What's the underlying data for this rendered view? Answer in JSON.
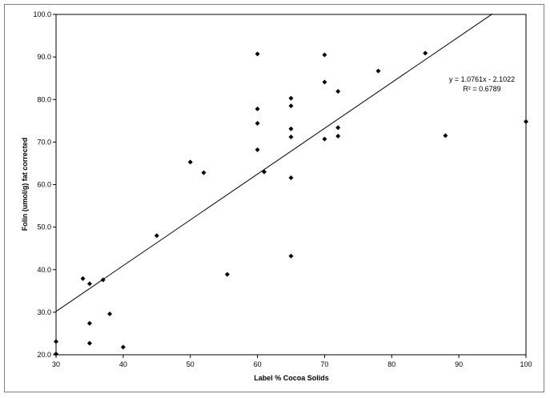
{
  "chart_data": {
    "type": "scatter",
    "title": "",
    "xlabel": "Label %  Cocoa Solids",
    "ylabel": "Folin (umol/g) fat corrected",
    "xlim": [
      30,
      100
    ],
    "ylim": [
      20,
      100
    ],
    "x_ticks": [
      "30",
      "40",
      "50",
      "60",
      "70",
      "80",
      "90",
      "100"
    ],
    "y_ticks": [
      "20.0",
      "30.0",
      "40.0",
      "50.0",
      "60.0",
      "70.0",
      "80.0",
      "90.0",
      "100.0"
    ],
    "grid": false,
    "legend": "none",
    "marker": "diamond",
    "marker_color": "#000000",
    "points": [
      {
        "x": 30,
        "y": 23.1
      },
      {
        "x": 30,
        "y": 20.2
      },
      {
        "x": 34,
        "y": 37.9
      },
      {
        "x": 35,
        "y": 36.7
      },
      {
        "x": 35,
        "y": 27.4
      },
      {
        "x": 35,
        "y": 22.7
      },
      {
        "x": 37,
        "y": 37.6
      },
      {
        "x": 38,
        "y": 29.6
      },
      {
        "x": 40,
        "y": 21.8
      },
      {
        "x": 45,
        "y": 48.0
      },
      {
        "x": 50,
        "y": 65.3
      },
      {
        "x": 52,
        "y": 62.8
      },
      {
        "x": 55.5,
        "y": 38.9
      },
      {
        "x": 60,
        "y": 90.7
      },
      {
        "x": 60,
        "y": 77.8
      },
      {
        "x": 60,
        "y": 74.4
      },
      {
        "x": 60,
        "y": 68.2
      },
      {
        "x": 61,
        "y": 63.0
      },
      {
        "x": 65,
        "y": 80.3
      },
      {
        "x": 65,
        "y": 78.5
      },
      {
        "x": 65,
        "y": 73.1
      },
      {
        "x": 65,
        "y": 71.2
      },
      {
        "x": 65,
        "y": 61.6
      },
      {
        "x": 65,
        "y": 43.2
      },
      {
        "x": 70,
        "y": 90.5
      },
      {
        "x": 70,
        "y": 84.1
      },
      {
        "x": 70,
        "y": 70.7
      },
      {
        "x": 72,
        "y": 81.9
      },
      {
        "x": 72,
        "y": 73.4
      },
      {
        "x": 72,
        "y": 71.4
      },
      {
        "x": 78,
        "y": 86.7
      },
      {
        "x": 85,
        "y": 90.9
      },
      {
        "x": 88,
        "y": 71.5
      },
      {
        "x": 100,
        "y": 74.8
      }
    ],
    "trendline": {
      "slope": 1.0761,
      "intercept": -2.1022,
      "x_start": 30,
      "x_end": 95
    },
    "annotation": {
      "equation": "y = 1.0761x - 2.1022",
      "r_squared": "R² = 0.6789"
    }
  }
}
